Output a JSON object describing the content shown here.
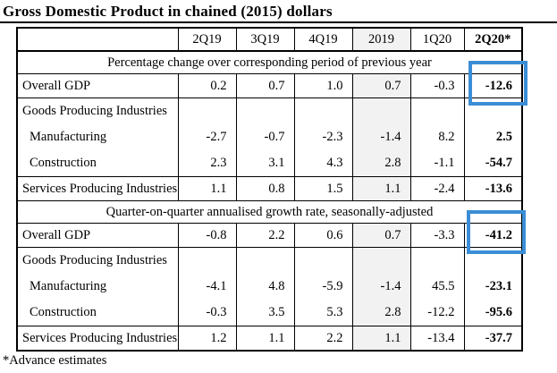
{
  "title": "Gross Domestic Product in chained (2015) dollars",
  "footnote": "*Advance estimates",
  "columns": [
    "2Q19",
    "3Q19",
    "4Q19",
    "2019",
    "1Q20",
    "2Q20*"
  ],
  "colors": {
    "highlight_box_blue": "#3b8ed6",
    "shaded_column_gray": "#f2f2f2"
  },
  "shaded_column": "2019",
  "highlighted_cells": [
    "-12.6",
    "-41.2"
  ],
  "sections": [
    {
      "header": "Percentage change over corresponding period of previous year",
      "rows": [
        {
          "label": "Overall GDP",
          "values": [
            "0.2",
            "0.7",
            "1.0",
            "0.7",
            "-0.3",
            "-12.6"
          ]
        },
        {
          "label": "Goods Producing Industries",
          "values": [
            "",
            "",
            "",
            "",
            "",
            ""
          ]
        },
        {
          "label": "Manufacturing",
          "values": [
            "-2.7",
            "-0.7",
            "-2.3",
            "-1.4",
            "8.2",
            "2.5"
          ]
        },
        {
          "label": "Construction",
          "values": [
            "2.3",
            "3.1",
            "4.3",
            "2.8",
            "-1.1",
            "-54.7"
          ]
        },
        {
          "label": "Services Producing Industries",
          "values": [
            "1.1",
            "0.8",
            "1.5",
            "1.1",
            "-2.4",
            "-13.6"
          ]
        }
      ]
    },
    {
      "header": "Quarter-on-quarter annualised growth rate, seasonally-adjusted",
      "rows": [
        {
          "label": "Overall GDP",
          "values": [
            "-0.8",
            "2.2",
            "0.6",
            "0.7",
            "-3.3",
            "-41.2"
          ]
        },
        {
          "label": "Goods Producing Industries",
          "values": [
            "",
            "",
            "",
            "",
            "",
            ""
          ]
        },
        {
          "label": "Manufacturing",
          "values": [
            "-4.1",
            "4.8",
            "-5.9",
            "-1.4",
            "45.5",
            "-23.1"
          ]
        },
        {
          "label": "Construction",
          "values": [
            "-0.3",
            "3.5",
            "5.3",
            "2.8",
            "-12.2",
            "-95.6"
          ]
        },
        {
          "label": "Services Producing Industries",
          "values": [
            "1.2",
            "1.1",
            "2.2",
            "1.1",
            "-13.4",
            "-37.7"
          ]
        }
      ]
    }
  ]
}
